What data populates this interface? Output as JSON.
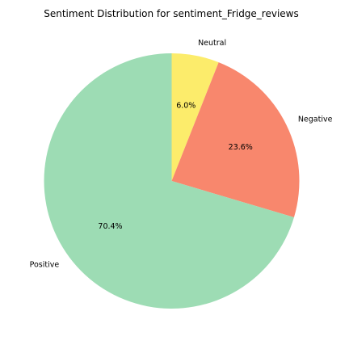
{
  "chart_data": {
    "type": "pie",
    "title": "Sentiment Distribution for sentiment_Fridge_reviews",
    "start_angle_deg": 90,
    "direction": "clockwise",
    "legend": "none",
    "slices": [
      {
        "label": "Neutral",
        "value": 6.0,
        "percent_label": "6.0%",
        "color": "#fcec6b"
      },
      {
        "label": "Negative",
        "value": 23.6,
        "percent_label": "23.6%",
        "color": "#f8876d"
      },
      {
        "label": "Positive",
        "value": 70.4,
        "percent_label": "70.4%",
        "color": "#9ddcb4"
      }
    ]
  }
}
